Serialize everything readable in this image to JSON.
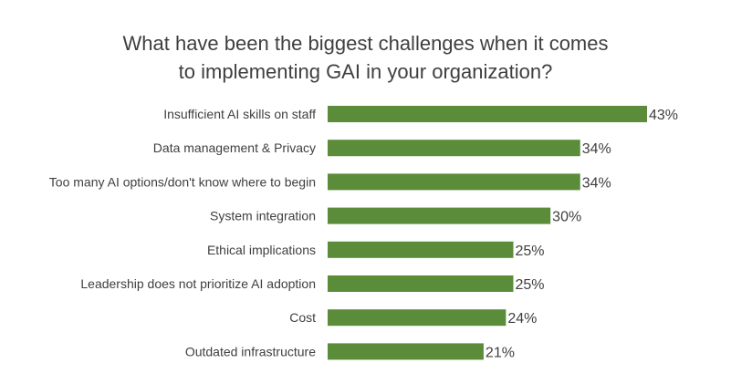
{
  "chart_data": {
    "type": "bar",
    "orientation": "horizontal",
    "title_lines": [
      "What have been the biggest challenges when it comes",
      "to implementing GAI in your organization?"
    ],
    "categories": [
      "Insufficient AI skills on staff",
      "Data management & Privacy",
      "Too many AI options/don't know where to begin",
      "System integration",
      "Ethical implications",
      "Leadership does not prioritize AI adoption",
      "Cost",
      "Outdated infrastructure"
    ],
    "values": [
      43,
      34,
      34,
      30,
      25,
      25,
      24,
      21
    ],
    "value_labels": [
      "43%",
      "34%",
      "34%",
      "30%",
      "25%",
      "25%",
      "24%",
      "21%"
    ],
    "unit": "%",
    "xlim": [
      0,
      43
    ],
    "grid": false,
    "legend": "none",
    "bar_color": "#5b8c3a"
  }
}
